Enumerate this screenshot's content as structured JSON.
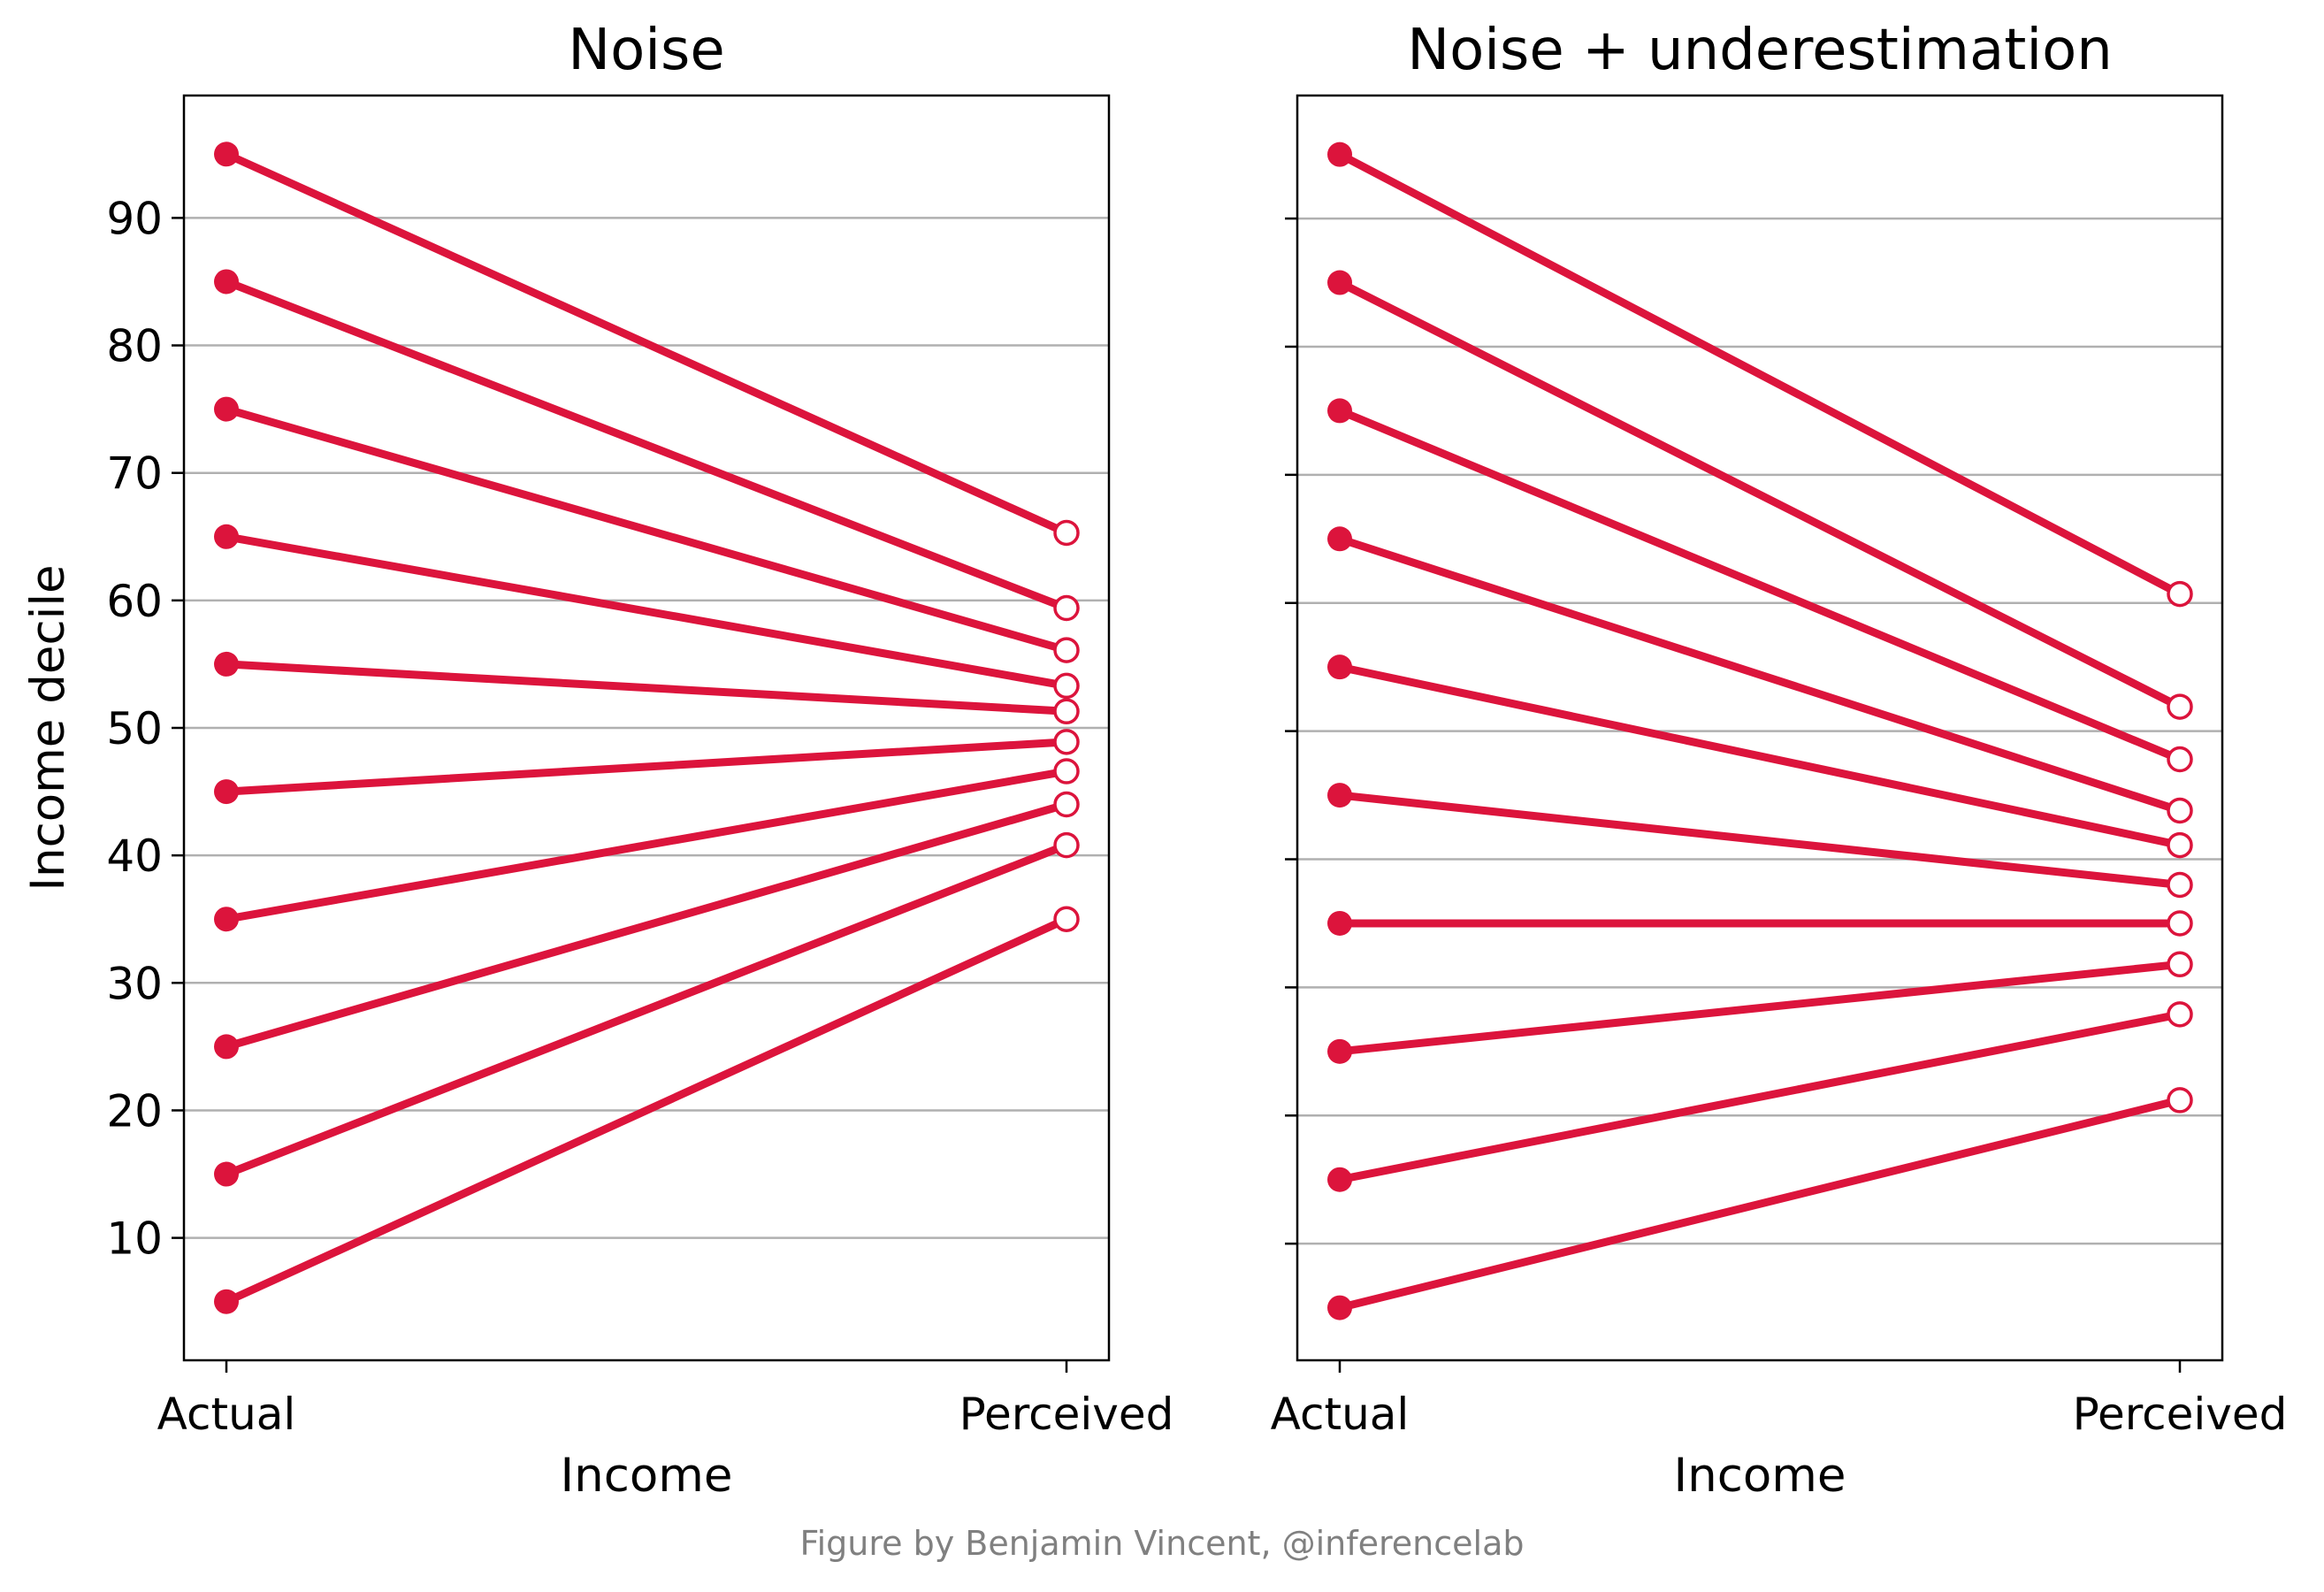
{
  "credit": "Figure by Benjamin Vincent, @inferencelab",
  "colors": {
    "series": "#dc143c",
    "grid": "#b0b0b0",
    "credit": "#808080"
  },
  "chart_data": [
    {
      "type": "line",
      "title": "Noise",
      "xlabel": "Income",
      "ylabel": "Income decile",
      "categories": [
        "Actual",
        "Perceived"
      ],
      "ylim": [
        0,
        100
      ],
      "yticks": [
        10,
        20,
        30,
        40,
        50,
        60,
        70,
        80,
        90
      ],
      "grid": "horizontal",
      "markers": {
        "Actual": "filled circle",
        "Perceived": "open circle"
      },
      "pairs": [
        {
          "actual": 95,
          "perceived": 65.3
        },
        {
          "actual": 85,
          "perceived": 59.4
        },
        {
          "actual": 75,
          "perceived": 56.1
        },
        {
          "actual": 65,
          "perceived": 53.3
        },
        {
          "actual": 55,
          "perceived": 51.3
        },
        {
          "actual": 45,
          "perceived": 48.9
        },
        {
          "actual": 35,
          "perceived": 46.6
        },
        {
          "actual": 25,
          "perceived": 44.0
        },
        {
          "actual": 15,
          "perceived": 40.8
        },
        {
          "actual": 5,
          "perceived": 35.0
        }
      ]
    },
    {
      "type": "line",
      "title": "Noise + underestimation",
      "xlabel": "Income",
      "ylabel": "",
      "categories": [
        "Actual",
        "Perceived"
      ],
      "ylim": [
        0,
        100
      ],
      "yticks": [
        10,
        20,
        30,
        40,
        50,
        60,
        70,
        80,
        90
      ],
      "grid": "horizontal",
      "markers": {
        "Actual": "filled circle",
        "Perceived": "open circle"
      },
      "pairs": [
        {
          "actual": 95,
          "perceived": 60.7
        },
        {
          "actual": 85,
          "perceived": 51.9
        },
        {
          "actual": 75,
          "perceived": 47.8
        },
        {
          "actual": 65,
          "perceived": 43.8
        },
        {
          "actual": 55,
          "perceived": 41.1
        },
        {
          "actual": 45,
          "perceived": 38.0
        },
        {
          "actual": 35,
          "perceived": 35.0
        },
        {
          "actual": 25,
          "perceived": 31.8
        },
        {
          "actual": 15,
          "perceived": 27.9
        },
        {
          "actual": 5,
          "perceived": 21.2
        }
      ]
    }
  ]
}
